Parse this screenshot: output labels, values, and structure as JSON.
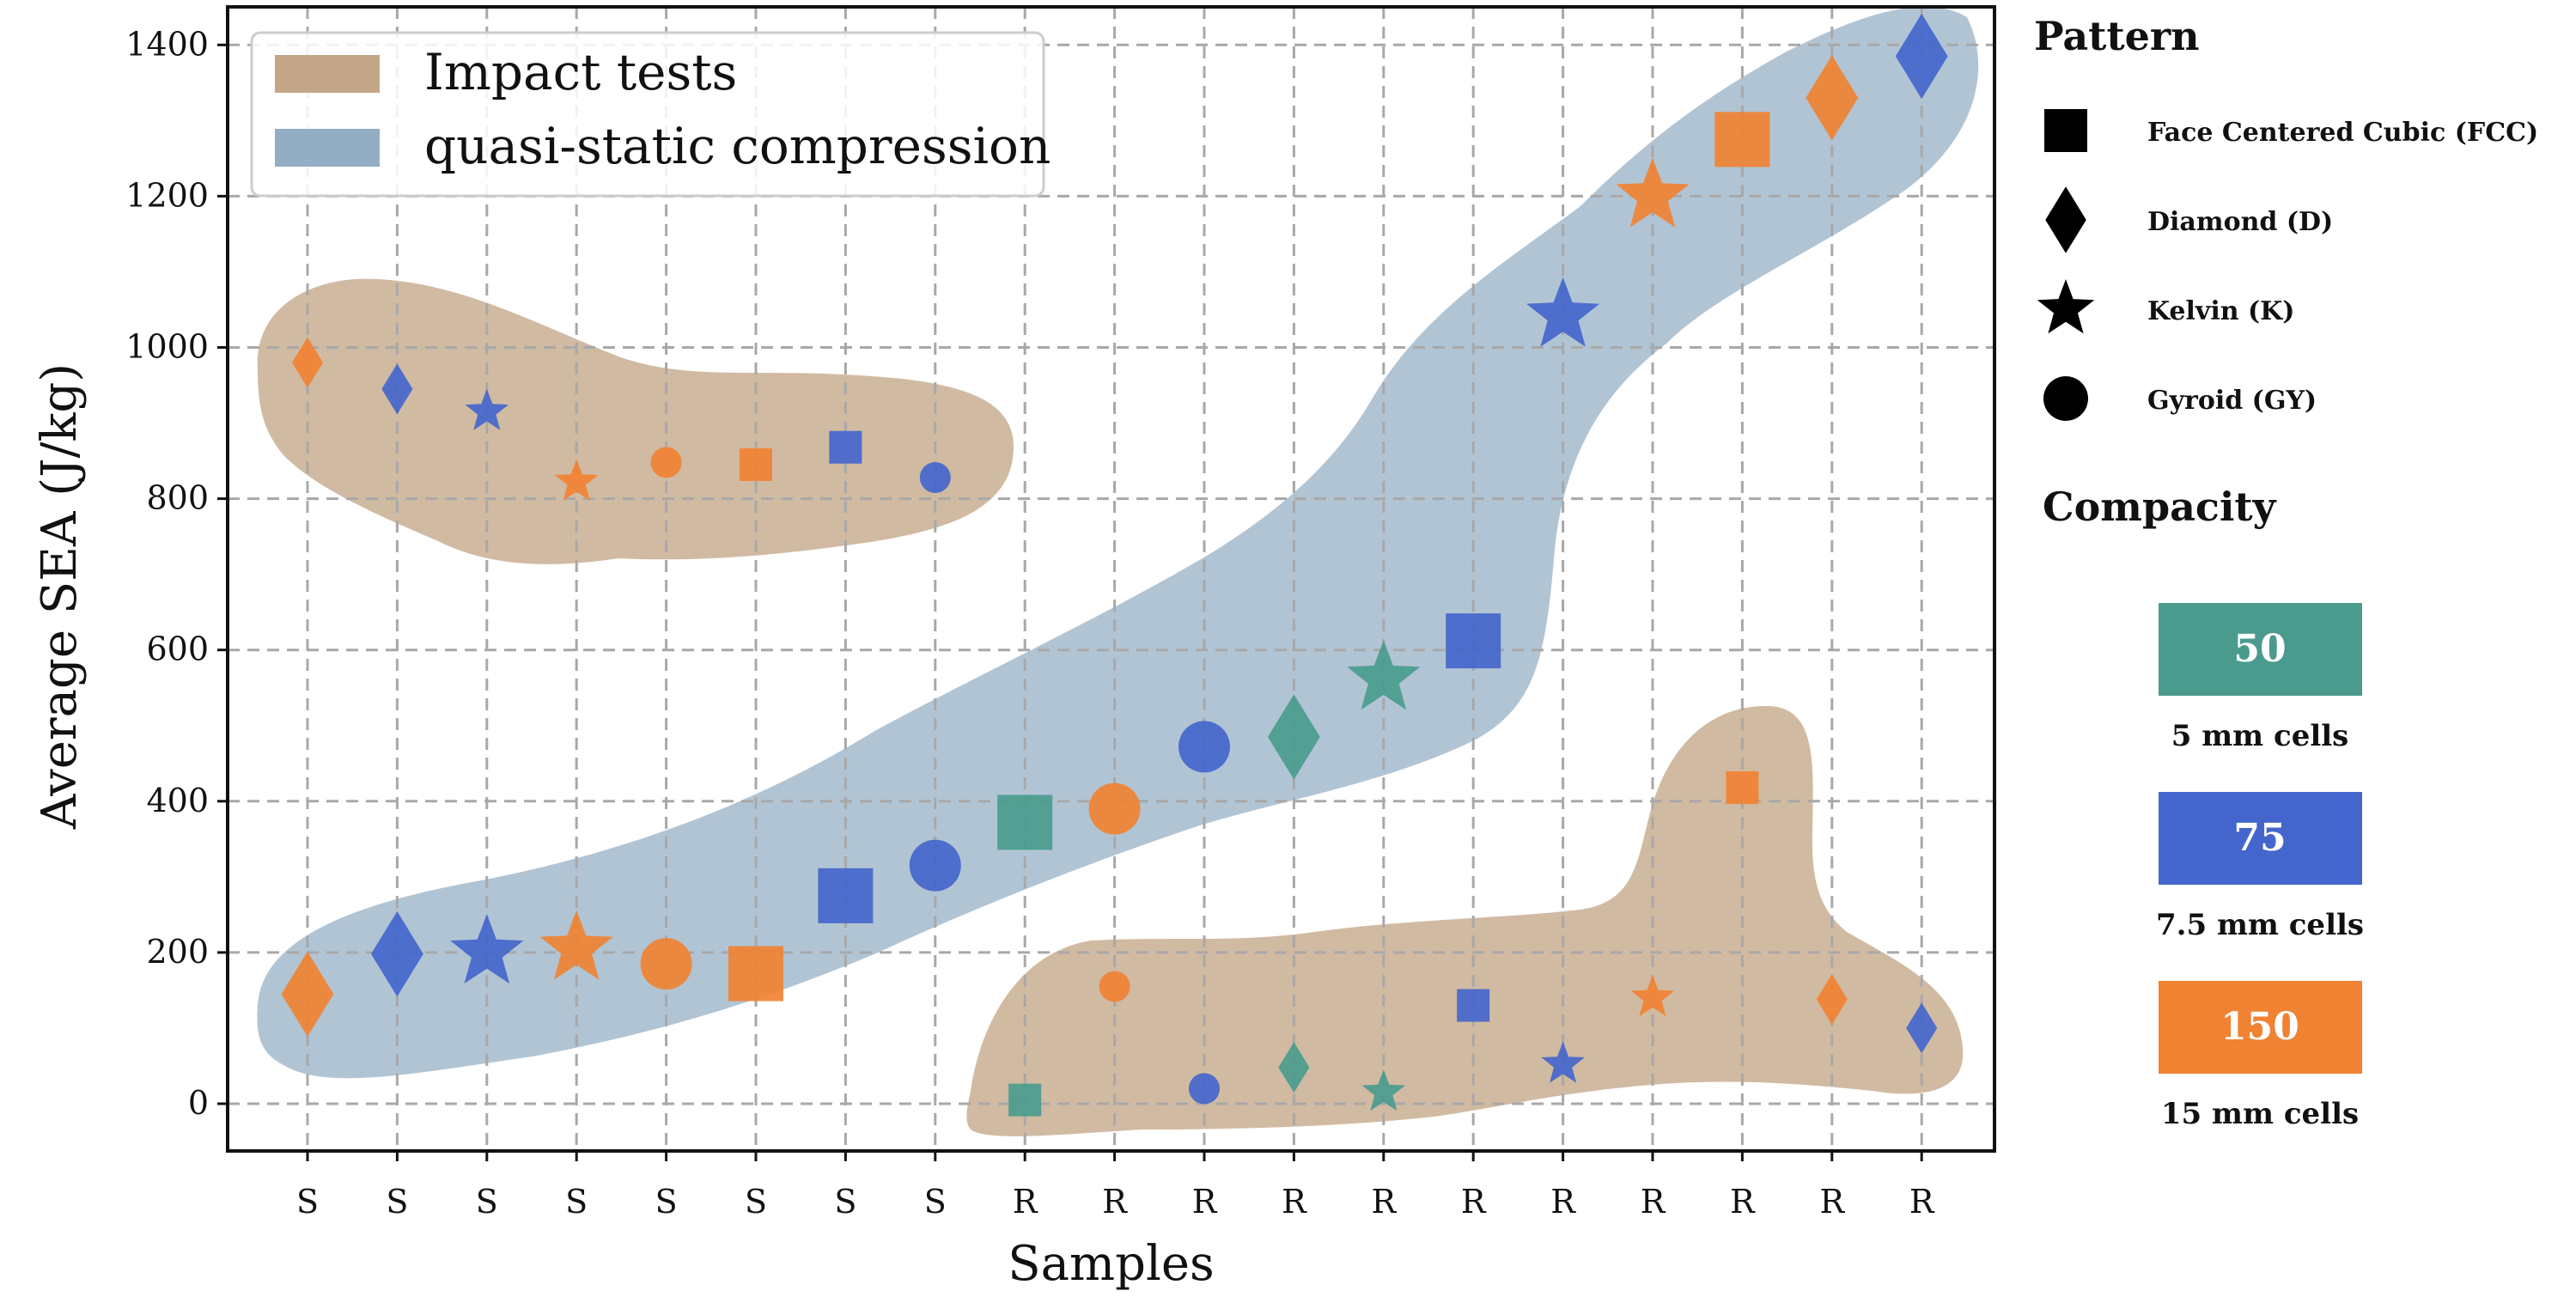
{
  "chart_data": {
    "type": "scatter",
    "title": "",
    "xlabel": "Samples",
    "ylabel": "Average SEA (J/kg)",
    "ylim": [
      -65,
      1455
    ],
    "yticks": [
      0,
      200,
      400,
      600,
      800,
      1000,
      1200,
      1400
    ],
    "grid": true,
    "categories": [
      "S",
      "S",
      "S",
      "S",
      "S",
      "S",
      "S",
      "S",
      "R",
      "R",
      "R",
      "R",
      "R",
      "R",
      "R",
      "R",
      "R",
      "R",
      "R"
    ],
    "legend": {
      "placement": "top-left",
      "entries": [
        {
          "label": "Impact tests",
          "color": "#c4a788"
        },
        {
          "label": "quasi-static compression",
          "color": "#93adc4"
        }
      ]
    },
    "pattern_legend": {
      "title": "Pattern",
      "entries": [
        {
          "label": "Face Centered Cubic (FCC)",
          "marker": "square"
        },
        {
          "label": "Diamond (D)",
          "marker": "diamond"
        },
        {
          "label": "Kelvin (K)",
          "marker": "star"
        },
        {
          "label": "Gyroid (GY)",
          "marker": "circle"
        }
      ]
    },
    "compacity_legend": {
      "title": "Compacity",
      "entries": [
        {
          "value": "50",
          "caption": "5 mm cells",
          "color": "#4a9b8e"
        },
        {
          "value": "75",
          "caption": "7.5 mm cells",
          "color": "#4466cc"
        },
        {
          "value": "150",
          "caption": "15 mm cells",
          "color": "#f08232"
        }
      ]
    },
    "series": [
      {
        "name": "quasi-static compression",
        "marker_scale": "large",
        "points": [
          {
            "x": 0,
            "y": 145,
            "marker": "diamond",
            "compacity": "150"
          },
          {
            "x": 1,
            "y": 198,
            "marker": "diamond",
            "compacity": "75"
          },
          {
            "x": 2,
            "y": 200,
            "marker": "star",
            "compacity": "75"
          },
          {
            "x": 3,
            "y": 205,
            "marker": "star",
            "compacity": "150"
          },
          {
            "x": 4,
            "y": 185,
            "marker": "circle",
            "compacity": "150"
          },
          {
            "x": 5,
            "y": 172,
            "marker": "square",
            "compacity": "150"
          },
          {
            "x": 6,
            "y": 275,
            "marker": "square",
            "compacity": "75"
          },
          {
            "x": 7,
            "y": 315,
            "marker": "circle",
            "compacity": "75"
          },
          {
            "x": 8,
            "y": 372,
            "marker": "square",
            "compacity": "50"
          },
          {
            "x": 9,
            "y": 390,
            "marker": "circle",
            "compacity": "150"
          },
          {
            "x": 10,
            "y": 472,
            "marker": "circle",
            "compacity": "75"
          },
          {
            "x": 11,
            "y": 485,
            "marker": "diamond",
            "compacity": "50"
          },
          {
            "x": 12,
            "y": 562,
            "marker": "star",
            "compacity": "50"
          },
          {
            "x": 13,
            "y": 612,
            "marker": "square",
            "compacity": "75"
          },
          {
            "x": 14,
            "y": 1042,
            "marker": "star",
            "compacity": "75"
          },
          {
            "x": 15,
            "y": 1200,
            "marker": "star",
            "compacity": "150"
          },
          {
            "x": 16,
            "y": 1275,
            "marker": "square",
            "compacity": "150"
          },
          {
            "x": 17,
            "y": 1330,
            "marker": "diamond",
            "compacity": "150"
          },
          {
            "x": 18,
            "y": 1385,
            "marker": "diamond",
            "compacity": "75"
          }
        ]
      },
      {
        "name": "Impact tests",
        "marker_scale": "small",
        "points": [
          {
            "x": 0,
            "y": 980,
            "marker": "diamond",
            "compacity": "150"
          },
          {
            "x": 1,
            "y": 945,
            "marker": "diamond",
            "compacity": "75"
          },
          {
            "x": 2,
            "y": 915,
            "marker": "star",
            "compacity": "75"
          },
          {
            "x": 3,
            "y": 822,
            "marker": "star",
            "compacity": "150"
          },
          {
            "x": 4,
            "y": 848,
            "marker": "circle",
            "compacity": "150"
          },
          {
            "x": 5,
            "y": 845,
            "marker": "square",
            "compacity": "150"
          },
          {
            "x": 6,
            "y": 868,
            "marker": "square",
            "compacity": "75"
          },
          {
            "x": 7,
            "y": 828,
            "marker": "circle",
            "compacity": "75"
          },
          {
            "x": 8,
            "y": 5,
            "marker": "square",
            "compacity": "50"
          },
          {
            "x": 9,
            "y": 155,
            "marker": "circle",
            "compacity": "150"
          },
          {
            "x": 10,
            "y": 20,
            "marker": "circle",
            "compacity": "75"
          },
          {
            "x": 11,
            "y": 48,
            "marker": "diamond",
            "compacity": "50"
          },
          {
            "x": 12,
            "y": 15,
            "marker": "star",
            "compacity": "50"
          },
          {
            "x": 13,
            "y": 130,
            "marker": "square",
            "compacity": "75"
          },
          {
            "x": 14,
            "y": 52,
            "marker": "star",
            "compacity": "75"
          },
          {
            "x": 15,
            "y": 140,
            "marker": "star",
            "compacity": "150"
          },
          {
            "x": 16,
            "y": 418,
            "marker": "square",
            "compacity": "150"
          },
          {
            "x": 17,
            "y": 138,
            "marker": "diamond",
            "compacity": "150"
          },
          {
            "x": 18,
            "y": 100,
            "marker": "diamond",
            "compacity": "75"
          }
        ]
      }
    ]
  }
}
